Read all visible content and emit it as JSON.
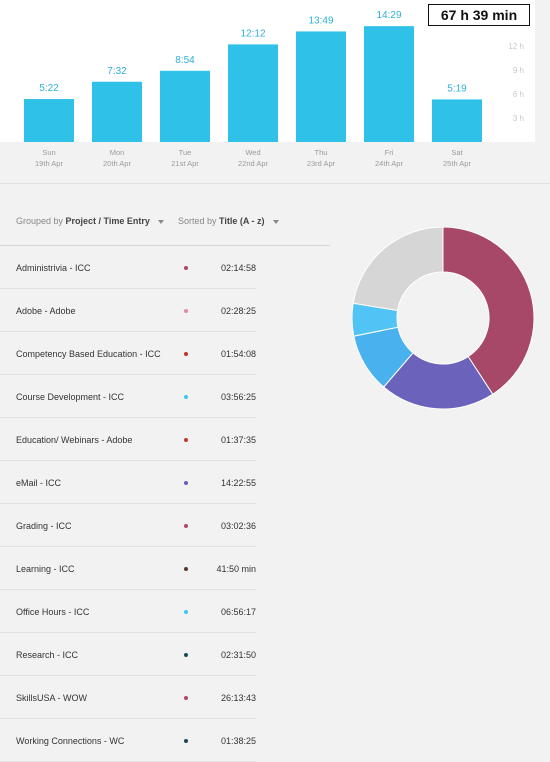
{
  "total_time": "67 h 39 min",
  "chart_data": {
    "type": "bar",
    "categories": [
      "Sun 19th Apr",
      "Mon 20th Apr",
      "Tue 21st Apr",
      "Wed 22nd Apr",
      "Thu 23rd Apr",
      "Fri 24th Apr",
      "Sat 25th Apr"
    ],
    "days": [
      {
        "name": "Sun",
        "date": "19th Apr",
        "label": "5:22",
        "hours": 5.37
      },
      {
        "name": "Mon",
        "date": "20th Apr",
        "label": "7:32",
        "hours": 7.53
      },
      {
        "name": "Tue",
        "date": "21st Apr",
        "label": "8:54",
        "hours": 8.9
      },
      {
        "name": "Wed",
        "date": "22nd Apr",
        "label": "12:12",
        "hours": 12.2
      },
      {
        "name": "Thu",
        "date": "23rd Apr",
        "label": "13:49",
        "hours": 13.82
      },
      {
        "name": "Fri",
        "date": "24th Apr",
        "label": "14:29",
        "hours": 14.48
      },
      {
        "name": "Sat",
        "date": "25th Apr",
        "label": "5:19",
        "hours": 5.32
      }
    ],
    "y_ticks": [
      {
        "value": 3,
        "label": "3 h"
      },
      {
        "value": 6,
        "label": "6 h"
      },
      {
        "value": 9,
        "label": "9 h"
      },
      {
        "value": 12,
        "label": "12 h"
      }
    ],
    "ylim": [
      0,
      18
    ],
    "bar_color": "#2fc1e8"
  },
  "controls": {
    "group_prefix": "Grouped by",
    "group_value": "Project / Time Entry",
    "sort_prefix": "Sorted by",
    "sort_value": "Title (A - z)"
  },
  "entries": [
    {
      "name": "Administrivia - ICC",
      "duration": "02:14:58",
      "color": "#b0456a"
    },
    {
      "name": "Adobe - Adobe",
      "duration": "02:28:25",
      "color": "#e887a8"
    },
    {
      "name": "Competency Based Education - ICC",
      "duration": "01:54:08",
      "color": "#c0392b"
    },
    {
      "name": "Course Development - ICC",
      "duration": "03:56:25",
      "color": "#3ec7ef"
    },
    {
      "name": "Education/ Webinars - Adobe",
      "duration": "01:37:35",
      "color": "#c0392b"
    },
    {
      "name": "eMail - ICC",
      "duration": "14:22:55",
      "color": "#6a5fc0"
    },
    {
      "name": "Grading - ICC",
      "duration": "03:02:36",
      "color": "#b0456a"
    },
    {
      "name": "Learning - ICC",
      "duration": "41:50 min",
      "color": "#5a3a2a"
    },
    {
      "name": "Office Hours - ICC",
      "duration": "06:56:17",
      "color": "#3ec7ef"
    },
    {
      "name": "Research - ICC",
      "duration": "02:31:50",
      "color": "#1a4a5a"
    },
    {
      "name": "SkillsUSA - WOW",
      "duration": "26:13:43",
      "color": "#b0456a"
    },
    {
      "name": "Working Connections - WC",
      "duration": "01:38:25",
      "color": "#1a4a5a"
    }
  ],
  "donut": {
    "segments": [
      {
        "color": "#a84868",
        "value": 0.408
      },
      {
        "color": "#6b62bb",
        "value": 0.205
      },
      {
        "color": "#4ab1ef",
        "value": 0.105
      },
      {
        "color": "#52c3f5",
        "value": 0.058
      },
      {
        "color": "#d6d6d6",
        "value": 0.224
      }
    ]
  }
}
